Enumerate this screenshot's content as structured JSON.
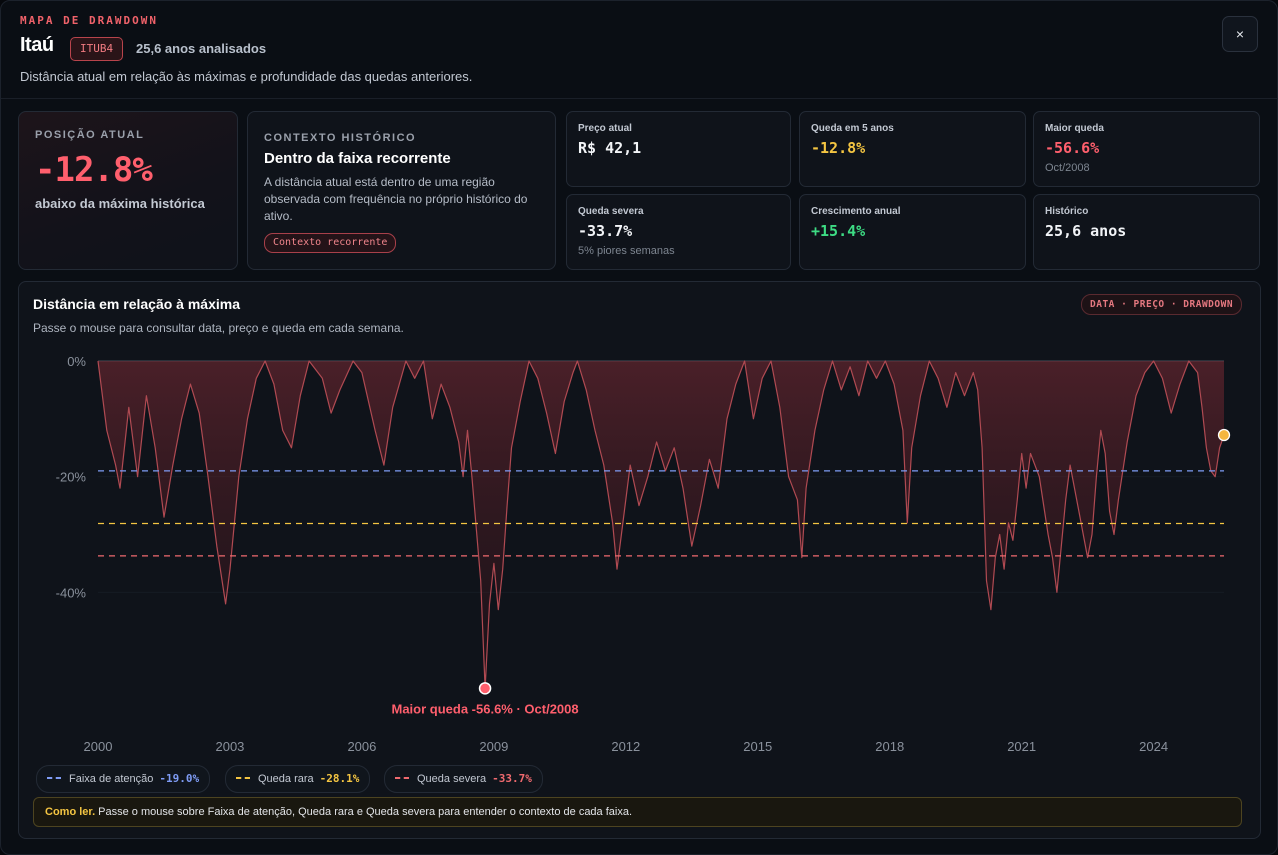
{
  "header": {
    "kicker": "MAPA DE DRAWDOWN",
    "title": "Itaú",
    "ticker": "ITUB4",
    "years_analyzed": "25,6 anos analisados",
    "subtitle": "Distância atual em relação às máximas e profundidade das quedas anteriores.",
    "close_icon": "×"
  },
  "position": {
    "label": "POSIÇÃO ATUAL",
    "value": "-12.8%",
    "caption": "abaixo da máxima histórica"
  },
  "context": {
    "label": "CONTEXTO HISTÓRICO",
    "title": "Dentro da faixa recorrente",
    "text": "A distância atual está dentro de uma região observada com frequência no próprio histórico do ativo.",
    "badge": "Contexto recorrente"
  },
  "stats": [
    {
      "label": "Preço atual",
      "value": "R$ 42,1",
      "sub": "",
      "color": "#f2f4f7"
    },
    {
      "label": "Queda em 5 anos",
      "value": "-12.8%",
      "sub": "",
      "color": "#f4c542"
    },
    {
      "label": "Maior queda",
      "value": "-56.6%",
      "sub": "Oct/2008",
      "color": "#ff5f6d"
    },
    {
      "label": "Queda severa",
      "value": "-33.7%",
      "sub": "5% piores semanas",
      "color": "#f2f4f7"
    },
    {
      "label": "Crescimento anual",
      "value": "+15.4%",
      "sub": "",
      "color": "#3ddc84"
    },
    {
      "label": "Histórico",
      "value": "25,6 anos",
      "sub": "",
      "color": "#f2f4f7"
    }
  ],
  "chart": {
    "title": "Distância em relação à máxima",
    "subtitle": "Passe o mouse para consultar data, preço e queda em cada semana.",
    "tag": "DATA · PREÇO · DRAWDOWN",
    "max_drop_label": "Maior queda -56.6% · Oct/2008"
  },
  "chart_data": {
    "type": "area",
    "ylim": [
      -60,
      0
    ],
    "y_ticks": [
      "0%",
      "-20%",
      "-40%"
    ],
    "y_tick_values": [
      0,
      -20,
      -40
    ],
    "x_ticks": [
      "2000",
      "2003",
      "2006",
      "2009",
      "2012",
      "2015",
      "2018",
      "2021",
      "2024"
    ],
    "x_tick_values": [
      2000.0,
      2003.0,
      2006.0,
      2009.0,
      2012.0,
      2015.0,
      2018.0,
      2021.0,
      2024.0
    ],
    "xlim": [
      2000.0,
      2025.6
    ],
    "series": [
      {
        "values_note": "",
        "points": [
          [
            2000.0,
            0
          ],
          [
            2000.2,
            -12
          ],
          [
            2000.4,
            -18
          ],
          [
            2000.5,
            -22
          ],
          [
            2000.7,
            -8
          ],
          [
            2000.9,
            -20
          ],
          [
            2001.1,
            -6
          ],
          [
            2001.3,
            -15
          ],
          [
            2001.5,
            -27
          ],
          [
            2001.7,
            -18
          ],
          [
            2001.9,
            -10
          ],
          [
            2002.1,
            -4
          ],
          [
            2002.3,
            -9
          ],
          [
            2002.5,
            -20
          ],
          [
            2002.7,
            -32
          ],
          [
            2002.9,
            -42
          ],
          [
            2003.0,
            -36
          ],
          [
            2003.2,
            -20
          ],
          [
            2003.4,
            -10
          ],
          [
            2003.6,
            -3
          ],
          [
            2003.8,
            0
          ],
          [
            2004.0,
            -4
          ],
          [
            2004.2,
            -12
          ],
          [
            2004.4,
            -15
          ],
          [
            2004.6,
            -6
          ],
          [
            2004.8,
            0
          ],
          [
            2005.1,
            -3
          ],
          [
            2005.3,
            -9
          ],
          [
            2005.5,
            -5
          ],
          [
            2005.8,
            0
          ],
          [
            2006.0,
            -2
          ],
          [
            2006.3,
            -12
          ],
          [
            2006.5,
            -18
          ],
          [
            2006.7,
            -8
          ],
          [
            2007.0,
            0
          ],
          [
            2007.2,
            -3
          ],
          [
            2007.4,
            0
          ],
          [
            2007.6,
            -10
          ],
          [
            2007.8,
            -4
          ],
          [
            2008.0,
            -8
          ],
          [
            2008.2,
            -14
          ],
          [
            2008.3,
            -20
          ],
          [
            2008.4,
            -12
          ],
          [
            2008.5,
            -20
          ],
          [
            2008.6,
            -29
          ],
          [
            2008.7,
            -38
          ],
          [
            2008.8,
            -56.6
          ],
          [
            2008.9,
            -42
          ],
          [
            2009.0,
            -35
          ],
          [
            2009.1,
            -43
          ],
          [
            2009.2,
            -36
          ],
          [
            2009.3,
            -25
          ],
          [
            2009.4,
            -15
          ],
          [
            2009.6,
            -7
          ],
          [
            2009.8,
            0
          ],
          [
            2010.0,
            -3
          ],
          [
            2010.2,
            -9
          ],
          [
            2010.4,
            -16
          ],
          [
            2010.6,
            -7
          ],
          [
            2010.8,
            -2
          ],
          [
            2010.9,
            0
          ],
          [
            2011.1,
            -5
          ],
          [
            2011.3,
            -12
          ],
          [
            2011.5,
            -18
          ],
          [
            2011.7,
            -28
          ],
          [
            2011.8,
            -36
          ],
          [
            2011.9,
            -30
          ],
          [
            2012.1,
            -18
          ],
          [
            2012.3,
            -25
          ],
          [
            2012.5,
            -20
          ],
          [
            2012.7,
            -14
          ],
          [
            2012.9,
            -19
          ],
          [
            2013.1,
            -15
          ],
          [
            2013.3,
            -22
          ],
          [
            2013.5,
            -32
          ],
          [
            2013.7,
            -25
          ],
          [
            2013.9,
            -17
          ],
          [
            2014.1,
            -22
          ],
          [
            2014.3,
            -10
          ],
          [
            2014.5,
            -4
          ],
          [
            2014.7,
            0
          ],
          [
            2014.9,
            -10
          ],
          [
            2015.1,
            -3
          ],
          [
            2015.3,
            0
          ],
          [
            2015.5,
            -8
          ],
          [
            2015.7,
            -20
          ],
          [
            2015.9,
            -24
          ],
          [
            2016.0,
            -34
          ],
          [
            2016.1,
            -22
          ],
          [
            2016.3,
            -12
          ],
          [
            2016.5,
            -5
          ],
          [
            2016.7,
            0
          ],
          [
            2016.9,
            -5
          ],
          [
            2017.1,
            -1
          ],
          [
            2017.3,
            -6
          ],
          [
            2017.5,
            0
          ],
          [
            2017.7,
            -3
          ],
          [
            2017.9,
            0
          ],
          [
            2018.1,
            -4
          ],
          [
            2018.3,
            -12
          ],
          [
            2018.4,
            -28
          ],
          [
            2018.5,
            -15
          ],
          [
            2018.7,
            -6
          ],
          [
            2018.9,
            0
          ],
          [
            2019.1,
            -3
          ],
          [
            2019.3,
            -8
          ],
          [
            2019.5,
            -2
          ],
          [
            2019.7,
            -6
          ],
          [
            2019.9,
            -2
          ],
          [
            2020.0,
            -5
          ],
          [
            2020.1,
            -15
          ],
          [
            2020.2,
            -38
          ],
          [
            2020.3,
            -43
          ],
          [
            2020.4,
            -34
          ],
          [
            2020.5,
            -30
          ],
          [
            2020.6,
            -36
          ],
          [
            2020.7,
            -28
          ],
          [
            2020.8,
            -31
          ],
          [
            2020.9,
            -24
          ],
          [
            2021.0,
            -16
          ],
          [
            2021.1,
            -22
          ],
          [
            2021.2,
            -16
          ],
          [
            2021.4,
            -20
          ],
          [
            2021.5,
            -25
          ],
          [
            2021.6,
            -30
          ],
          [
            2021.7,
            -34
          ],
          [
            2021.8,
            -40
          ],
          [
            2021.9,
            -32
          ],
          [
            2022.0,
            -24
          ],
          [
            2022.1,
            -18
          ],
          [
            2022.3,
            -26
          ],
          [
            2022.5,
            -34
          ],
          [
            2022.6,
            -30
          ],
          [
            2022.7,
            -20
          ],
          [
            2022.8,
            -12
          ],
          [
            2022.9,
            -16
          ],
          [
            2023.0,
            -26
          ],
          [
            2023.1,
            -30
          ],
          [
            2023.2,
            -24
          ],
          [
            2023.4,
            -14
          ],
          [
            2023.6,
            -6
          ],
          [
            2023.8,
            -2
          ],
          [
            2024.0,
            0
          ],
          [
            2024.2,
            -3
          ],
          [
            2024.4,
            -9
          ],
          [
            2024.6,
            -4
          ],
          [
            2024.8,
            0
          ],
          [
            2025.0,
            -2
          ],
          [
            2025.1,
            -8
          ],
          [
            2025.2,
            -15
          ],
          [
            2025.3,
            -19
          ],
          [
            2025.4,
            -20
          ],
          [
            2025.5,
            -15
          ],
          [
            2025.6,
            -12.8
          ]
        ]
      }
    ],
    "thresholds": [
      {
        "name": "Faixa de atenção",
        "value": -19.0,
        "label": "-19.0%",
        "color": "#7f9cf5"
      },
      {
        "name": "Queda rara",
        "value": -28.1,
        "label": "-28.1%",
        "color": "#f4c542"
      },
      {
        "name": "Queda severa",
        "value": -33.7,
        "label": "-33.7%",
        "color": "#f06a6f"
      }
    ],
    "max_drop": {
      "x": 2008.8,
      "y": -56.6
    },
    "current": {
      "x": 2025.6,
      "y": -12.8
    },
    "grid": true
  },
  "legend": [
    {
      "name": "Faixa de atenção",
      "value": "-19.0%",
      "color": "#7f9cf5"
    },
    {
      "name": "Queda rara",
      "value": "-28.1%",
      "color": "#f4c542"
    },
    {
      "name": "Queda severa",
      "value": "-33.7%",
      "color": "#f06a6f"
    }
  ],
  "howto": {
    "lead": "Como ler.",
    "text": " Passe o mouse sobre Faixa de atenção, Queda rara e Queda severa para entender o contexto de cada faixa."
  }
}
